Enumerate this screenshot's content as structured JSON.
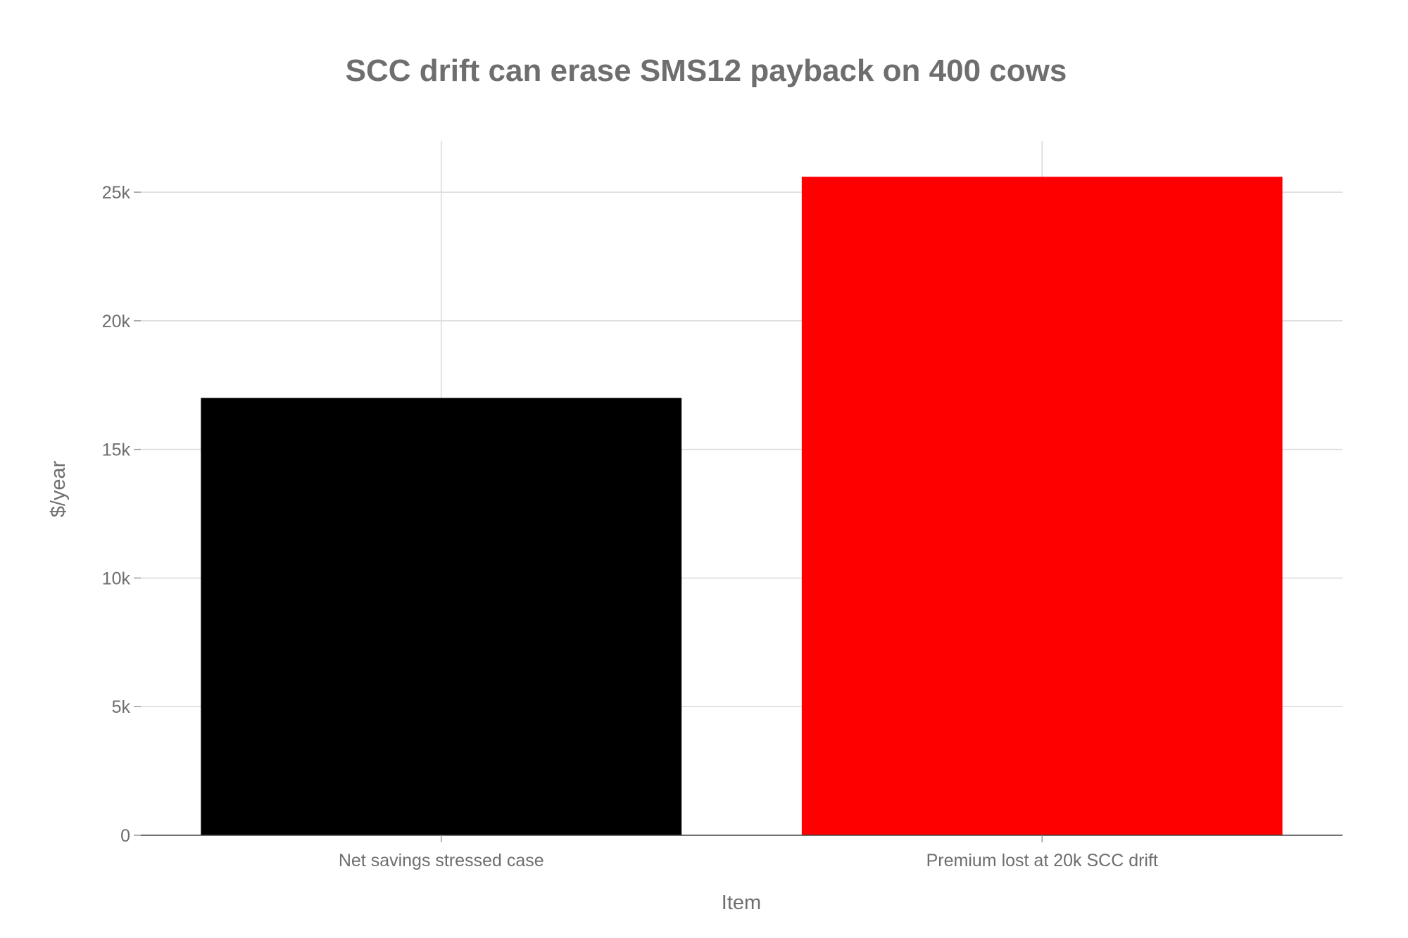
{
  "chart_data": {
    "type": "bar",
    "title": "SCC drift can erase SMS12 payback on 400 cows",
    "xlabel": "Item",
    "ylabel": "$/year",
    "categories": [
      "Net savings stressed case",
      "Premium lost at 20k SCC drift"
    ],
    "values": [
      17000,
      25600
    ],
    "bar_colors": [
      "#000000",
      "#ff0000"
    ],
    "ylim": [
      0,
      27000
    ],
    "yticks": [
      0,
      5000,
      10000,
      15000,
      20000,
      25000
    ],
    "ytick_labels": [
      "0",
      "5k",
      "10k",
      "15k",
      "20k",
      "25k"
    ],
    "grid": true,
    "legend": "none"
  }
}
